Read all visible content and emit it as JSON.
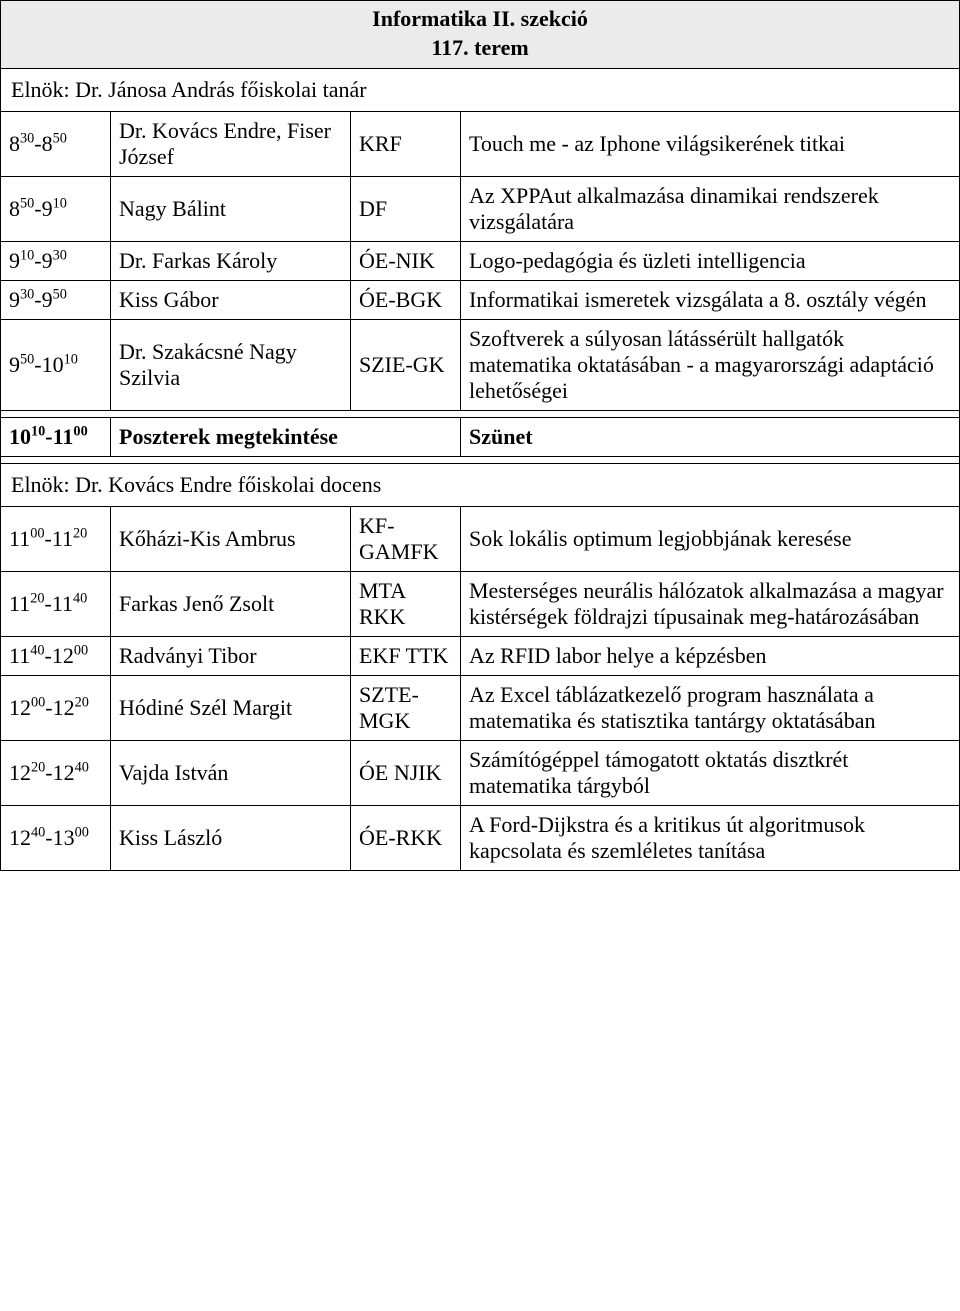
{
  "section_title_line1": "Informatika II. szekció",
  "section_title_line2": "117. terem",
  "chair1_prefix": "Elnök:  ",
  "chair1_name": "Dr. Jánosa András",
  "chair1_role": "   főiskolai tanár",
  "rows1": [
    {
      "t1h": "8",
      "t1m": "30",
      "t2h": "8",
      "t2m": "50",
      "name": "Dr. Kovács Endre, Fiser József",
      "inst": "KRF",
      "title": "Touch me - az Iphone világsikerének titkai"
    },
    {
      "t1h": "8",
      "t1m": "50",
      "t2h": "9",
      "t2m": "10",
      "name": "Nagy Bálint",
      "inst": "DF",
      "title": "Az XPPAut alkalmazása dinamikai rendszerek vizsgálatára"
    },
    {
      "t1h": "9",
      "t1m": "10",
      "t2h": "9",
      "t2m": "30",
      "name": "Dr. Farkas Károly",
      "inst": "ÓE-NIK",
      "title": "Logo-pedagógia és üzleti intelligencia"
    },
    {
      "t1h": "9",
      "t1m": "30",
      "t2h": "9",
      "t2m": "50",
      "name": "Kiss Gábor",
      "inst": "ÓE-BGK",
      "title": "Informatikai ismeretek vizsgálata a 8. osztály végén"
    },
    {
      "t1h": "9",
      "t1m": "50",
      "t2h": "10",
      "t2m": "10",
      "name": "Dr. Szakácsné Nagy Szilvia",
      "inst": "SZIE-GK",
      "title": "Szoftverek a súlyosan látássérült hallgatók matematika oktatásában - a magyarországi adaptáció lehetőségei"
    }
  ],
  "break_t1h": "10",
  "break_t1m": "10",
  "break_t2h": "11",
  "break_t2m": "00",
  "break_label": "Poszterek megtekintése",
  "break_title": "Szünet",
  "chair2_prefix": "Elnök:  ",
  "chair2_name": "Dr. Kovács Endre",
  "chair2_role": "   főiskolai docens",
  "rows2": [
    {
      "t1h": "11",
      "t1m": "00",
      "t2h": "11",
      "t2m": "20",
      "name": "Kőházi-Kis Ambrus",
      "inst": "KF-GAMFK",
      "title": "Sok lokális optimum legjobbjának keresése"
    },
    {
      "t1h": "11",
      "t1m": "20",
      "t2h": "11",
      "t2m": "40",
      "name": "Farkas Jenő Zsolt",
      "inst": "MTA RKK",
      "title": "Mesterséges neurális hálózatok alkalmazása a magyar kistérségek földrajzi típusainak meg-határozásában"
    },
    {
      "t1h": "11",
      "t1m": "40",
      "t2h": "12",
      "t2m": "00",
      "name": "Radványi Tibor",
      "inst": "EKF TTK",
      "title": "Az RFID labor helye a képzésben"
    },
    {
      "t1h": "12",
      "t1m": "00",
      "t2h": "12",
      "t2m": "20",
      "name": "Hódiné Szél Margit",
      "inst": "SZTE-MGK",
      "title": "Az Excel táblázatkezelő program használata a matematika és statisztika tantárgy oktatásában"
    },
    {
      "t1h": "12",
      "t1m": "20",
      "t2h": "12",
      "t2m": "40",
      "name": "Vajda István",
      "inst": "ÓE NJIK",
      "title": "Számítógéppel támogatott oktatás disztkrét matematika tárgyból"
    },
    {
      "t1h": "12",
      "t1m": "40",
      "t2h": "13",
      "t2m": "00",
      "name": "Kiss László",
      "inst": "ÓE-RKK",
      "title": "A Ford-Dijkstra és a kritikus út algoritmusok kapcsolata és szemléletes tanítása"
    }
  ]
}
